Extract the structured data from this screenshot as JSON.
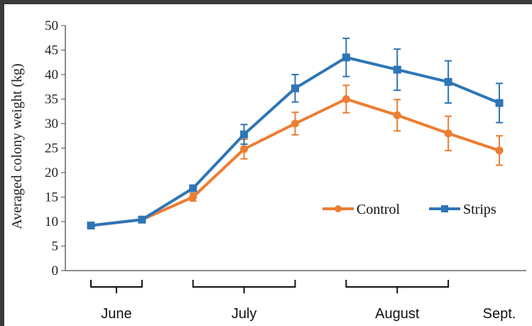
{
  "chart_data": {
    "type": "line",
    "ylabel": "Averaged colony weight (kg)",
    "ylim": [
      0,
      50
    ],
    "yticks": [
      "0",
      "5",
      "10",
      "15",
      "20",
      "25",
      "30",
      "35",
      "40",
      "45",
      "50"
    ],
    "x": [
      1,
      2,
      3,
      4,
      5,
      6,
      7,
      8,
      9
    ],
    "month_groups": [
      {
        "label": "June",
        "from": 1,
        "to": 2
      },
      {
        "label": "July",
        "from": 3,
        "to": 5
      },
      {
        "label": "August",
        "from": 6,
        "to": 8
      },
      {
        "label": "Sept.",
        "from": 9,
        "to": 9
      }
    ],
    "series": [
      {
        "name": "Control",
        "color": "#ED7D31",
        "marker": "circle",
        "values": [
          9.2,
          10.4,
          15.0,
          24.8,
          30.0,
          35.0,
          31.7,
          28.0,
          24.5
        ],
        "errors": [
          0.5,
          0.5,
          0.8,
          2.0,
          2.3,
          2.8,
          3.2,
          3.5,
          3.0
        ]
      },
      {
        "name": "Strips",
        "color": "#2E75B6",
        "marker": "square",
        "values": [
          9.2,
          10.4,
          16.8,
          27.8,
          37.2,
          43.5,
          41.0,
          38.5,
          34.2
        ],
        "errors": [
          0.5,
          0.5,
          0.6,
          2.0,
          2.8,
          3.9,
          4.2,
          4.3,
          4.0
        ]
      }
    ],
    "legend": "center-right",
    "grid": false
  }
}
